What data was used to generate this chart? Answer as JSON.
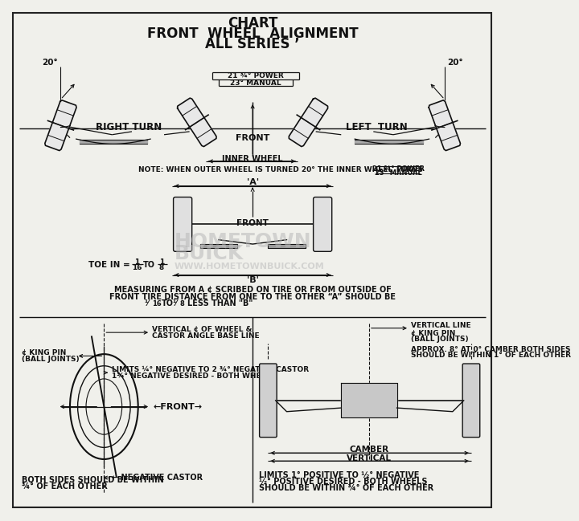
{
  "title_line1": "CHART",
  "title_line2": "FRONT  WHEEL  ALIGNMENT",
  "title_line3": "ALL SERIES ’",
  "bg_color": "#f0f0eb",
  "line_color": "#111111",
  "border_color": "#222222",
  "text_color": "#111111",
  "note_text": "NOTE: WHEN OUTER WHEEL IS TURNED 20° THE INNER WHEEL TURNS",
  "power_label": "21 ¾° POWER",
  "manual_label": "23° MANUAL",
  "section2_text1": "MEASURING FROM A ¢ SCRIBED ON TIRE OR FROM OUTSIDE OF",
  "section2_text2": "FRONT TIRE DISTANCE FROM ONE TO THE OTHER “A” SHOULD BE",
  "section2_text3": "¹⁄₁₆ TO ¹⁄₈ LESS THAN “B”",
  "castor_title1": "VERTICAL ¢ OF WHEEL &",
  "castor_title2": "CASTOR ANGLE BASE LINE",
  "castor_kp1": "¢ KING PIN",
  "castor_kp2": "(BALL JOINTS)",
  "castor_limit": "LIMITS ¼° NEGATIVE TO 2 ¾° NEGATIVE CASTOR",
  "castor_desired": "1¾° NEGATIVE DESIRED - BOTH WHEELS",
  "castor_front": "←FRONT→",
  "castor_neg": "← NEGATIVE CASTOR",
  "castor_both1": "BOTH SIDES SHOULD BE WITHIN",
  "castor_both2": "¾° OF EACH OTHER",
  "camber_vtitle": "VERTICAL LINE",
  "camber_kp1": "¢ KING PIN",
  "camber_kp2": "(BALL JOINTS)",
  "camber_approx1": "APPROX. 8° AT 0° CAMBER BOTH SIDES",
  "camber_approx2": "SHOULD BE WITHIN 1° OF EACH OTHER",
  "camber_label": "CAMBER",
  "camber_vert": "VERTICAL",
  "camber_limits": "LIMITS 1° POSITIVE TO ½° NEGATIVE",
  "camber_desired": "½° POSITIVE DESIRED - BOTH WHEELS",
  "camber_within": "SHOULD BE WITHIN ¾° OF EACH OTHER"
}
